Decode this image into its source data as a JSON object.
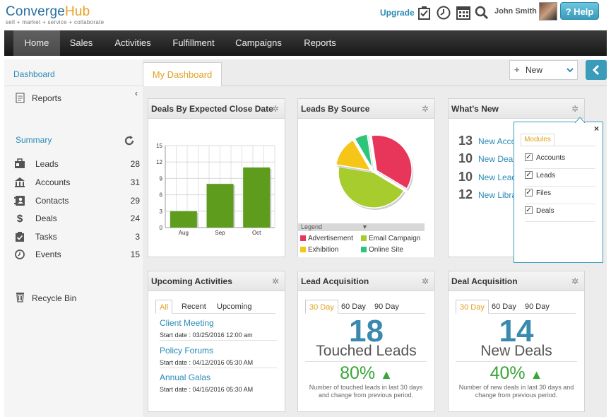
{
  "brand": {
    "logo_c": "C",
    "logo_onverge": "onverge",
    "logo_hub": "Hub",
    "tagline": "sell + market + service + collaborate"
  },
  "header": {
    "upgrade": "Upgrade",
    "user": "John Smith",
    "help": "? Help"
  },
  "nav": [
    "Home",
    "Sales",
    "Activities",
    "Fulfillment",
    "Campaigns",
    "Reports"
  ],
  "sidebar": {
    "dashboard": "Dashboard",
    "reports": "Reports",
    "summary": "Summary",
    "items": [
      {
        "label": "Leads",
        "count": "28",
        "icon": "leads-icon"
      },
      {
        "label": "Accounts",
        "count": "31",
        "icon": "accounts-icon"
      },
      {
        "label": "Contacts",
        "count": "29",
        "icon": "contacts-icon"
      },
      {
        "label": "Deals",
        "count": "24",
        "icon": "deals-icon"
      },
      {
        "label": "Tasks",
        "count": "3",
        "icon": "tasks-icon"
      },
      {
        "label": "Events",
        "count": "15",
        "icon": "events-icon"
      }
    ],
    "recycle": "Recycle Bin"
  },
  "tabs": {
    "my_dashboard": "My Dashboard",
    "new_button": "New"
  },
  "widgets": {
    "deals_close": {
      "title": "Deals By Expected Close Date"
    },
    "leads_source": {
      "title": "Leads By Source",
      "legend_title": "Legend",
      "legend": [
        {
          "label": "Advertisement",
          "color": "#e8365a"
        },
        {
          "label": "Email Campaign",
          "color": "#a6cc2e"
        },
        {
          "label": "Exhibition",
          "color": "#f5c518"
        },
        {
          "label": "Online Site",
          "color": "#2ec47a"
        }
      ]
    },
    "whats_new": {
      "title": "What's New",
      "rows": [
        {
          "num": "13",
          "text": "New Acco"
        },
        {
          "num": "10",
          "text": "New Deal"
        },
        {
          "num": "10",
          "text": "New Lead"
        },
        {
          "num": "12",
          "text": "New Libra"
        }
      ],
      "popup": {
        "close": "×",
        "tab": "Modules",
        "items": [
          "Accounts",
          "Leads",
          "Files",
          "Deals"
        ]
      }
    },
    "upcoming": {
      "title": "Upcoming Activities",
      "tabs": [
        "All",
        "Recent",
        "Upcoming"
      ],
      "items": [
        {
          "title": "Client Meeting",
          "date": "Start date : 03/25/2016 12:00 am"
        },
        {
          "title": "Policy Forums",
          "date": "Start date : 04/12/2016 05:30 AM"
        },
        {
          "title": "Annual Galas",
          "date": "Start date : 04/16/2016 05:30 AM"
        }
      ]
    },
    "lead_acq": {
      "title": "Lead Acquisition",
      "tabs": [
        "30 Day",
        "60 Day",
        "90 Day"
      ],
      "number": "18",
      "label": "Touched Leads",
      "percent": "80%",
      "desc": "Number of touched leads in last 30 days and change from previous period."
    },
    "deal_acq": {
      "title": "Deal Acquisition",
      "tabs": [
        "30 Day",
        "60 Day",
        "90 Day"
      ],
      "number": "14",
      "label": "New Deals",
      "percent": "40%",
      "desc": "Number of new deals in last 30 days and change from previous period."
    }
  },
  "chart_data": [
    {
      "type": "bar",
      "title": "Deals By Expected Close Date",
      "categories": [
        "Aug",
        "Sep",
        "Oct"
      ],
      "values": [
        3,
        8,
        11
      ],
      "ylim": [
        0,
        15
      ],
      "yticks": [
        0,
        3,
        6,
        9,
        12,
        15
      ],
      "color": "#5e9c1e",
      "grid": true
    },
    {
      "type": "pie",
      "title": "Leads By Source",
      "series": [
        {
          "name": "Advertisement",
          "value": 36,
          "color": "#e8365a"
        },
        {
          "name": "Email Campaign",
          "value": 44,
          "color": "#a6cc2e"
        },
        {
          "name": "Exhibition",
          "value": 14,
          "color": "#f5c518"
        },
        {
          "name": "Online Site",
          "value": 6,
          "color": "#2ec47a"
        }
      ]
    }
  ]
}
